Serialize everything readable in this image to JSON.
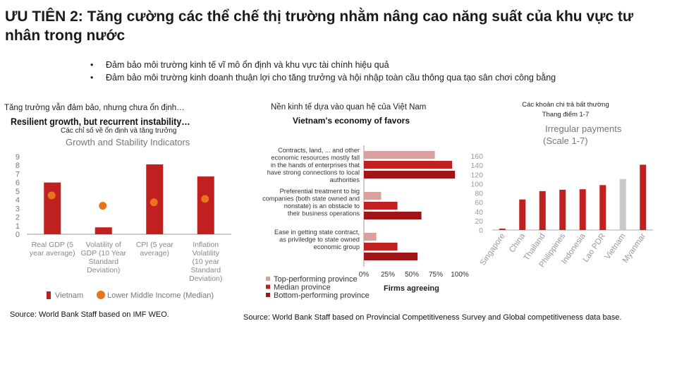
{
  "title": "ƯU TIÊN 2: Tăng cường các thể chế thị trường nhằm nâng cao năng suất của khu vực tư nhân trong nước",
  "bullets": [
    "Đảm bảo môi trường kinh tế vĩ mô ổn định và khu vực tài chính hiệu quả",
    "Đảm bảo môi trường kinh doanh thuận lợi cho tăng trưởng và hội nhập toàn cầu thông qua tạo sân chơi công bằng"
  ],
  "bullet_glyph": "•",
  "colors": {
    "vietnam": "#c0201f",
    "lmi": "#e8731e",
    "top": "#d9a0a0",
    "median": "#c0201f",
    "bottom": "#a01515",
    "grey": "#c8c8c8"
  },
  "left": {
    "vn_caption": "Tăng trưởng vẫn đảm bảo, nhưng chưa ổn định…",
    "en_title": "Resilient growth, but recurrent instability…",
    "vn_sub": "Các chỉ số về ổn định và tăng trưởng",
    "en_sub": "Growth and Stability Indicators",
    "source": "Source: World Bank Staff based on IMF WEO."
  },
  "middle": {
    "vn_caption": "Nền kinh tế dựa vào quan hệ của Việt Nam",
    "en_title": "Vietnam's economy of favors",
    "source": "Source: World Bank Staff based on Provincial Competitiveness Survey and Global competitiveness data base."
  },
  "right": {
    "vn_caption_1": "Các khoản chi trả bất thường",
    "vn_caption_2": "Thang điểm 1-7",
    "en_title": "Irregular payments",
    "en_sub": "(Scale 1-7)"
  },
  "chart_data": [
    {
      "type": "bar",
      "title": "Growth and Stability Indicators",
      "categories": [
        "Real GDP (5 year average)",
        "Volatility of GDP (10 Year Standard Deviation)",
        "CPI (5 year average)",
        "Inflation Volatility (10 year Standard Deviation)"
      ],
      "series": [
        {
          "name": "Vietnam",
          "values": [
            6.0,
            0.8,
            8.1,
            6.7
          ]
        },
        {
          "name": "Lower Middle Income (Median)",
          "values": [
            4.5,
            3.3,
            3.7,
            4.1
          ]
        }
      ],
      "ylim": [
        0,
        9
      ],
      "yticks": [
        "0",
        "1",
        "2",
        "3",
        "4",
        "5",
        "6",
        "7",
        "8",
        "9"
      ],
      "legend_placement": "bottom"
    },
    {
      "type": "bar",
      "orientation": "horizontal",
      "title": "Vietnam's economy of favors",
      "categories": [
        "Contracts, land, ... and other economic resources mostly fall in the hands of enterprises that have strong connections to local authorities",
        "Preferential treatment to big companies (both state owned and nonstate) is an obstacle to their business operations",
        "Ease in getting state contract, as priviledge to state owned economic group"
      ],
      "series": [
        {
          "name": "Top-performing province",
          "values": [
            74,
            18,
            13
          ]
        },
        {
          "name": "Median province",
          "values": [
            92,
            35,
            35
          ]
        },
        {
          "name": "Bottom-performing province",
          "values": [
            95,
            60,
            56
          ]
        }
      ],
      "xlim": [
        0,
        100
      ],
      "xticks": [
        "0%",
        "25%",
        "50%",
        "75%",
        "100%"
      ],
      "xlabel": "Firms agreeing",
      "legend_placement": "bottom"
    },
    {
      "type": "bar",
      "title": "Irregular payments",
      "subtitle": "(Scale 1-7)",
      "categories": [
        "Singapore",
        "China",
        "Thailand",
        "Philippines",
        "Indonesia",
        "Lao PDR",
        "Vietnam",
        "Myanmar"
      ],
      "values": [
        3,
        66,
        84,
        87,
        88,
        97,
        110,
        141
      ],
      "ylim": [
        0,
        160
      ],
      "yticks": [
        "0",
        "20",
        "40",
        "60",
        "80",
        "100",
        "120",
        "140",
        "160"
      ]
    }
  ]
}
